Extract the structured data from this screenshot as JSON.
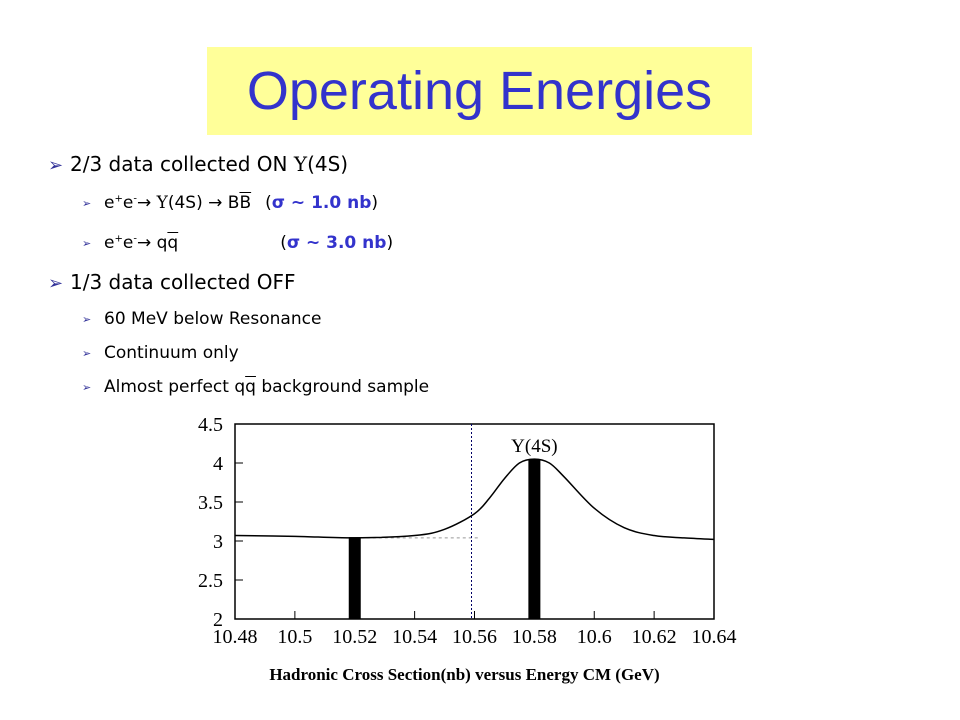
{
  "title": "Operating Energies",
  "bullets": {
    "on": {
      "text": "2/3 data collected ON ",
      "upsilon": "Υ",
      "state": "(4S)",
      "items": [
        {
          "pre": "e",
          "sup1": "+",
          "mid": "e",
          "sup2": "-",
          "arrow": "→ ",
          "ups": "Υ",
          "state": "(4S) ",
          "arrow2": "→ ",
          "prod_b": "B",
          "prod_bbar": "B",
          "sigma_open": "(",
          "sigma": "σ ~ 1.0 nb",
          "sigma_close": ")"
        },
        {
          "pre": "e",
          "sup1": "+",
          "mid": "e",
          "sup2": "-",
          "arrow": "→ ",
          "prod_q": "q",
          "prod_qbar": "q",
          "sigma_open": "(",
          "sigma": "σ ~ 3.0 nb",
          "sigma_close": ")"
        }
      ]
    },
    "off": {
      "text": "1/3 data collected OFF",
      "items": [
        "60 MeV below Resonance",
        "Continuum only"
      ],
      "sample_pre": "Almost perfect q",
      "sample_qbar": "q",
      "sample_post": " background sample"
    }
  },
  "chart_data": {
    "type": "line",
    "xlabel": "Hadronic Cross Section(nb) versus Energy CM (GeV)",
    "ylabel": "",
    "xlim": [
      10.48,
      10.64
    ],
    "ylim": [
      2,
      4.5
    ],
    "x_ticks": [
      "10.48",
      "10.5",
      "10.52",
      "10.54",
      "10.56",
      "10.58",
      "10.6",
      "10.62",
      "10.64"
    ],
    "y_ticks": [
      "2",
      "2.5",
      "3",
      "3.5",
      "4",
      "4.5"
    ],
    "annotation": "Υ(4S)",
    "series": [
      {
        "x": [
          10.48,
          10.5,
          10.52,
          10.54,
          10.55,
          10.56,
          10.565,
          10.57,
          10.575,
          10.58,
          10.585,
          10.59,
          10.6,
          10.61,
          10.62,
          10.63,
          10.64
        ],
        "values": [
          3.07,
          3.06,
          3.04,
          3.07,
          3.15,
          3.35,
          3.55,
          3.8,
          4.0,
          4.05,
          4.0,
          3.82,
          3.42,
          3.17,
          3.07,
          3.04,
          3.02
        ]
      }
    ],
    "bars": [
      {
        "x": 10.52,
        "value": 3.05
      },
      {
        "x": 10.58,
        "value": 4.05
      }
    ],
    "reference_line_x": 10.559,
    "baseline_value": 3.04
  }
}
